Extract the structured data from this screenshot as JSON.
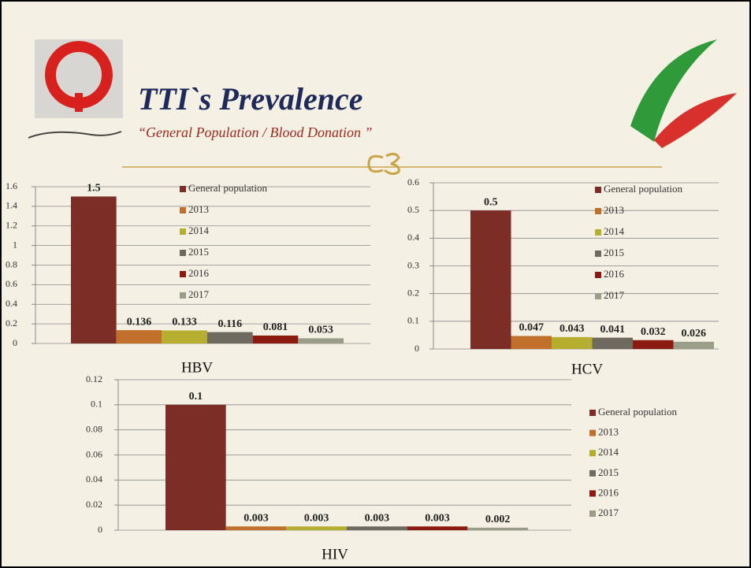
{
  "title": "TTI`s Prevalence",
  "subtitle": "“General Population / Blood Donation ”",
  "chart_data": [
    {
      "type": "bar",
      "title": "HBV",
      "categories": [
        "HBV"
      ],
      "ylim": [
        0,
        1.6
      ],
      "yticks": [
        0,
        0.2,
        0.4,
        0.6,
        0.8,
        1,
        1.2,
        1.4,
        1.6
      ],
      "grid": true,
      "series": [
        {
          "name": "General population",
          "color": "#7b2d26",
          "values": [
            1.5
          ]
        },
        {
          "name": "2013",
          "color": "#c0702a",
          "values": [
            0.136
          ]
        },
        {
          "name": "2014",
          "color": "#b5ae2f",
          "values": [
            0.133
          ]
        },
        {
          "name": "2015",
          "color": "#6e6a60",
          "values": [
            0.116
          ]
        },
        {
          "name": "2016",
          "color": "#8b1a10",
          "values": [
            0.081
          ]
        },
        {
          "name": "2017",
          "color": "#9a9e88",
          "values": [
            0.053
          ]
        }
      ]
    },
    {
      "type": "bar",
      "title": "HCV",
      "categories": [
        "HCV"
      ],
      "ylim": [
        0,
        0.6
      ],
      "yticks": [
        0,
        0.1,
        0.2,
        0.3,
        0.4,
        0.5,
        0.6
      ],
      "grid": true,
      "series": [
        {
          "name": "General population",
          "color": "#7b2d26",
          "values": [
            0.5
          ]
        },
        {
          "name": "2013",
          "color": "#c0702a",
          "values": [
            0.047
          ]
        },
        {
          "name": "2014",
          "color": "#b5ae2f",
          "values": [
            0.043
          ]
        },
        {
          "name": "2015",
          "color": "#6e6a60",
          "values": [
            0.041
          ]
        },
        {
          "name": "2016",
          "color": "#8b1a10",
          "values": [
            0.032
          ]
        },
        {
          "name": "2017",
          "color": "#9a9e88",
          "values": [
            0.026
          ]
        }
      ]
    },
    {
      "type": "bar",
      "title": "HIV",
      "categories": [
        "HIV"
      ],
      "ylim": [
        0,
        0.12
      ],
      "yticks": [
        0,
        0.02,
        0.04,
        0.06,
        0.08,
        0.1,
        0.12
      ],
      "grid": true,
      "series": [
        {
          "name": "General population",
          "color": "#7b2d26",
          "values": [
            0.1
          ]
        },
        {
          "name": "2013",
          "color": "#c0702a",
          "values": [
            0.003
          ]
        },
        {
          "name": "2014",
          "color": "#b5ae2f",
          "values": [
            0.003
          ]
        },
        {
          "name": "2015",
          "color": "#6e6a60",
          "values": [
            0.003
          ]
        },
        {
          "name": "2016",
          "color": "#8b1a10",
          "values": [
            0.003
          ]
        },
        {
          "name": "2017",
          "color": "#9a9e88",
          "values": [
            0.002
          ]
        }
      ]
    }
  ]
}
